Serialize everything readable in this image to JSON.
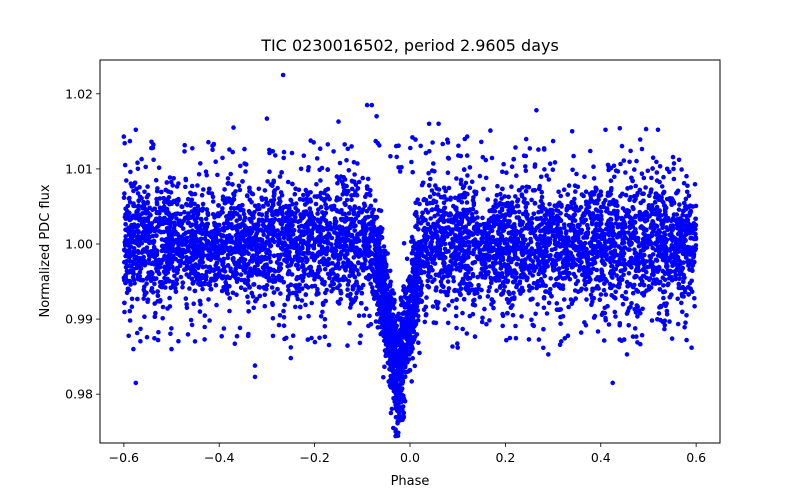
{
  "chart_data": {
    "type": "scatter",
    "title": "TIC 0230016502, period 2.9605 days",
    "xlabel": "Phase",
    "ylabel": "Normalized PDC flux",
    "xlim": [
      -0.65,
      0.65
    ],
    "ylim": [
      0.9735,
      1.0245
    ],
    "x_ticks": [
      -0.6,
      -0.4,
      -0.2,
      0.0,
      0.2,
      0.4,
      0.6
    ],
    "x_tick_labels": [
      "−0.6",
      "−0.4",
      "−0.2",
      "0.0",
      "0.2",
      "0.4",
      "0.6"
    ],
    "y_ticks": [
      0.98,
      0.99,
      1.0,
      1.01,
      1.02
    ],
    "y_tick_labels": [
      "0.98",
      "0.99",
      "1.00",
      "1.01",
      "1.02"
    ],
    "grid": false,
    "legend": "none",
    "marker_color": "#0000ff",
    "series": [
      {
        "description": "phase-folded flux with transit dip centered near phase -0.03",
        "x_range": [
          -0.6,
          0.6
        ],
        "baseline_flux": 1.0,
        "scatter_band": [
          0.9905,
          1.0095
        ],
        "transit_center_phase": -0.025,
        "transit_min_flux": 0.975,
        "points": [
          [
            -0.266,
            1.0225
          ],
          [
            0.265,
            1.0178
          ],
          [
            -0.09,
            1.0185
          ],
          [
            -0.08,
            1.0185
          ],
          [
            -0.3,
            1.0167
          ],
          [
            -0.07,
            1.017
          ],
          [
            0.04,
            1.016
          ],
          [
            0.06,
            1.016
          ],
          [
            -0.37,
            1.0155
          ],
          [
            -0.575,
            1.0152
          ],
          [
            -0.6,
            1.0143
          ],
          [
            0.41,
            1.0152
          ],
          [
            0.44,
            1.0154
          ],
          [
            0.495,
            1.0153
          ],
          [
            0.52,
            1.0152
          ],
          [
            0.34,
            1.015
          ],
          [
            -0.15,
            1.0163
          ],
          [
            0.12,
            1.0143
          ],
          [
            0.005,
            1.0142
          ],
          [
            0.3,
            1.0137
          ],
          [
            -0.035,
            0.9755
          ],
          [
            -0.03,
            0.975
          ],
          [
            -0.025,
            0.9768
          ],
          [
            -0.04,
            0.9775
          ],
          [
            -0.02,
            0.978
          ],
          [
            -0.032,
            0.979
          ],
          [
            -0.028,
            0.981
          ],
          [
            -0.038,
            0.9815
          ],
          [
            -0.575,
            0.9815
          ],
          [
            0.425,
            0.9815
          ],
          [
            -0.325,
            0.9823
          ],
          [
            -0.325,
            0.9838
          ],
          [
            -0.58,
            0.986
          ],
          [
            0.29,
            0.9853
          ],
          [
            0.455,
            0.9853
          ],
          [
            -0.25,
            0.9848
          ],
          [
            0.58,
            0.9872
          ],
          [
            -0.5,
            0.986
          ],
          [
            0.1,
            0.9862
          ],
          [
            0.02,
            0.9855
          ]
        ]
      }
    ]
  }
}
